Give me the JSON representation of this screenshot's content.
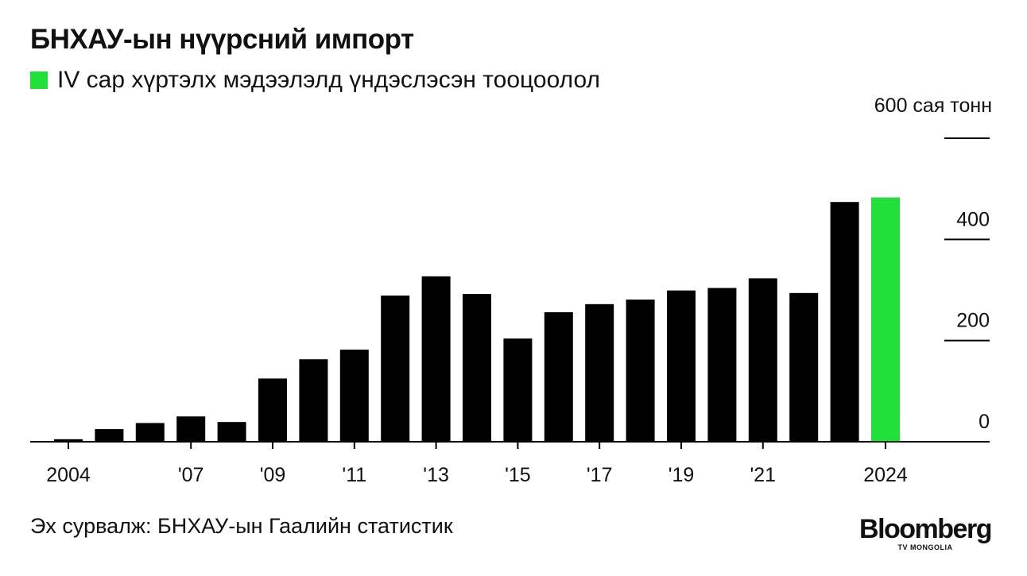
{
  "title": "БНХАУ-ын нүүрсний импорт",
  "legend": {
    "label": "IV сар хүртэлх мэдээлэлд үндэслэсэн тооцоолол",
    "color": "#22e03a"
  },
  "source": "Эх сурвалж: БНХАУ-ын Гаалийн статистик",
  "logo": {
    "word": "Bloomberg",
    "sub": "TV MONGOLIA"
  },
  "chart_data": {
    "type": "bar",
    "unit_label": "600 сая тонн",
    "categories": [
      "2004",
      "2005",
      "2006",
      "2007",
      "2008",
      "2009",
      "2010",
      "2011",
      "2012",
      "2013",
      "2014",
      "2015",
      "2016",
      "2017",
      "2018",
      "2019",
      "2020",
      "2021",
      "2022",
      "2023",
      "2024"
    ],
    "values": [
      5,
      25,
      37,
      50,
      39,
      125,
      163,
      182,
      289,
      327,
      292,
      204,
      256,
      272,
      281,
      299,
      304,
      323,
      294,
      474,
      483
    ],
    "highlight_index": 20,
    "bar_color": "#000000",
    "highlight_color": "#22e03a",
    "ylim": [
      0,
      600
    ],
    "yticks": [
      {
        "value": 0,
        "label": "0"
      },
      {
        "value": 200,
        "label": "200"
      },
      {
        "value": 400,
        "label": "400"
      },
      {
        "value": 600,
        "label": ""
      }
    ],
    "xticks": [
      {
        "index": 0,
        "label": "2004"
      },
      {
        "index": 3,
        "label": "'07"
      },
      {
        "index": 5,
        "label": "'09"
      },
      {
        "index": 7,
        "label": "'11"
      },
      {
        "index": 9,
        "label": "'13"
      },
      {
        "index": 11,
        "label": "'15"
      },
      {
        "index": 13,
        "label": "'17"
      },
      {
        "index": 15,
        "label": "'19"
      },
      {
        "index": 17,
        "label": "'21"
      },
      {
        "index": 20,
        "label": "2024"
      }
    ],
    "grid": false
  }
}
